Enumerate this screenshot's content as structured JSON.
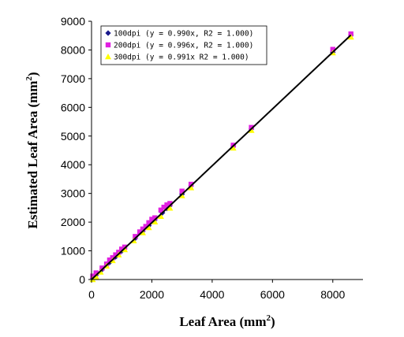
{
  "chart_data": {
    "type": "scatter",
    "xlabel": "Leaf Area (mm",
    "xlabel_sup": "2",
    "xlabel_end": ")",
    "ylabel": "Estimated Leaf Area (mm",
    "ylabel_sup": "2",
    "ylabel_end": ")",
    "xlim": [
      0,
      9000
    ],
    "ylim": [
      0,
      9000
    ],
    "x_ticks": [
      0,
      2000,
      4000,
      6000,
      8000
    ],
    "y_ticks": [
      0,
      1000,
      2000,
      3000,
      4000,
      5000,
      6000,
      7000,
      8000,
      9000
    ],
    "grid": false,
    "legend_position": "top-left",
    "fit_line": {
      "x0": 0,
      "y0": 0,
      "x1": 8600,
      "y1": 8520,
      "color": "#000000"
    },
    "series": [
      {
        "name": "100dpi (y = 0.990x, R2 = 1.000)",
        "marker": "diamond",
        "color": "#1a1a8c",
        "points": [
          [
            40,
            40
          ],
          [
            150,
            150
          ],
          [
            350,
            345
          ],
          [
            600,
            595
          ],
          [
            800,
            790
          ],
          [
            1000,
            990
          ],
          [
            1450,
            1435
          ],
          [
            1700,
            1685
          ],
          [
            1900,
            1880
          ],
          [
            2100,
            2080
          ],
          [
            2350,
            2325
          ],
          [
            2500,
            2475
          ],
          [
            2600,
            2575
          ],
          [
            3000,
            2970
          ],
          [
            3300,
            3265
          ],
          [
            4700,
            4655
          ],
          [
            5300,
            5245
          ],
          [
            8000,
            7920
          ],
          [
            8600,
            8515
          ]
        ]
      },
      {
        "name": "200dpi (y = 0.996x, R2 = 1.000)",
        "marker": "square",
        "color": "#e020e0",
        "points": [
          [
            40,
            120
          ],
          [
            150,
            230
          ],
          [
            350,
            400
          ],
          [
            500,
            540
          ],
          [
            600,
            680
          ],
          [
            700,
            760
          ],
          [
            800,
            860
          ],
          [
            900,
            950
          ],
          [
            1000,
            1060
          ],
          [
            1100,
            1130
          ],
          [
            1450,
            1500
          ],
          [
            1600,
            1660
          ],
          [
            1700,
            1760
          ],
          [
            1800,
            1850
          ],
          [
            1900,
            1980
          ],
          [
            2000,
            2100
          ],
          [
            2100,
            2150
          ],
          [
            2300,
            2420
          ],
          [
            2400,
            2520
          ],
          [
            2500,
            2600
          ],
          [
            2600,
            2650
          ],
          [
            3000,
            3080
          ],
          [
            3300,
            3320
          ],
          [
            4700,
            4680
          ],
          [
            5300,
            5300
          ],
          [
            8000,
            8020
          ],
          [
            8600,
            8560
          ]
        ]
      },
      {
        "name": "300dpi (y = 0.991x R2 = 1.000)",
        "marker": "triangle",
        "color": "#ffff00",
        "points": [
          [
            40,
            0
          ],
          [
            150,
            100
          ],
          [
            300,
            260
          ],
          [
            500,
            470
          ],
          [
            700,
            660
          ],
          [
            900,
            860
          ],
          [
            1100,
            1040
          ],
          [
            1400,
            1350
          ],
          [
            1700,
            1630
          ],
          [
            1900,
            1810
          ],
          [
            2100,
            2010
          ],
          [
            2300,
            2200
          ],
          [
            2600,
            2490
          ],
          [
            3000,
            2920
          ],
          [
            3300,
            3200
          ],
          [
            4700,
            4580
          ],
          [
            5300,
            5200
          ],
          [
            8000,
            7900
          ],
          [
            8600,
            8450
          ]
        ]
      }
    ]
  }
}
